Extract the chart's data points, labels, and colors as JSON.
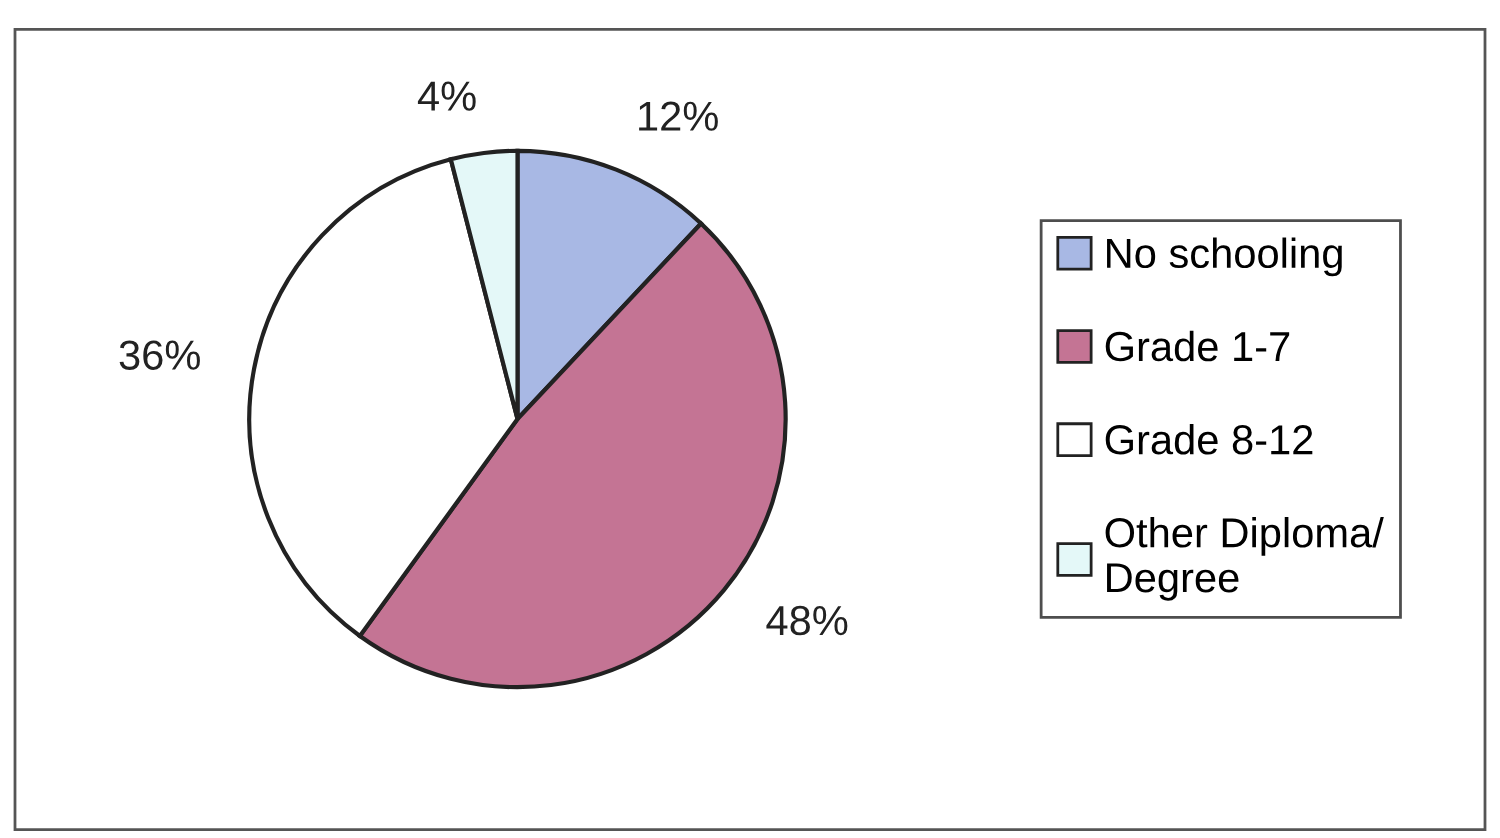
{
  "chart_data": {
    "type": "pie",
    "categories": [
      "No schooling",
      "Grade 1-7",
      "Grade 8-12",
      "Other Diploma/\nDegree"
    ],
    "values": [
      12,
      48,
      36,
      4
    ],
    "value_labels": [
      "12%",
      "48%",
      "36%",
      "4%"
    ],
    "colors": [
      "#a8b8e4",
      "#c47494",
      "#ffffff",
      "#e4f8f8"
    ],
    "legend": "right"
  }
}
